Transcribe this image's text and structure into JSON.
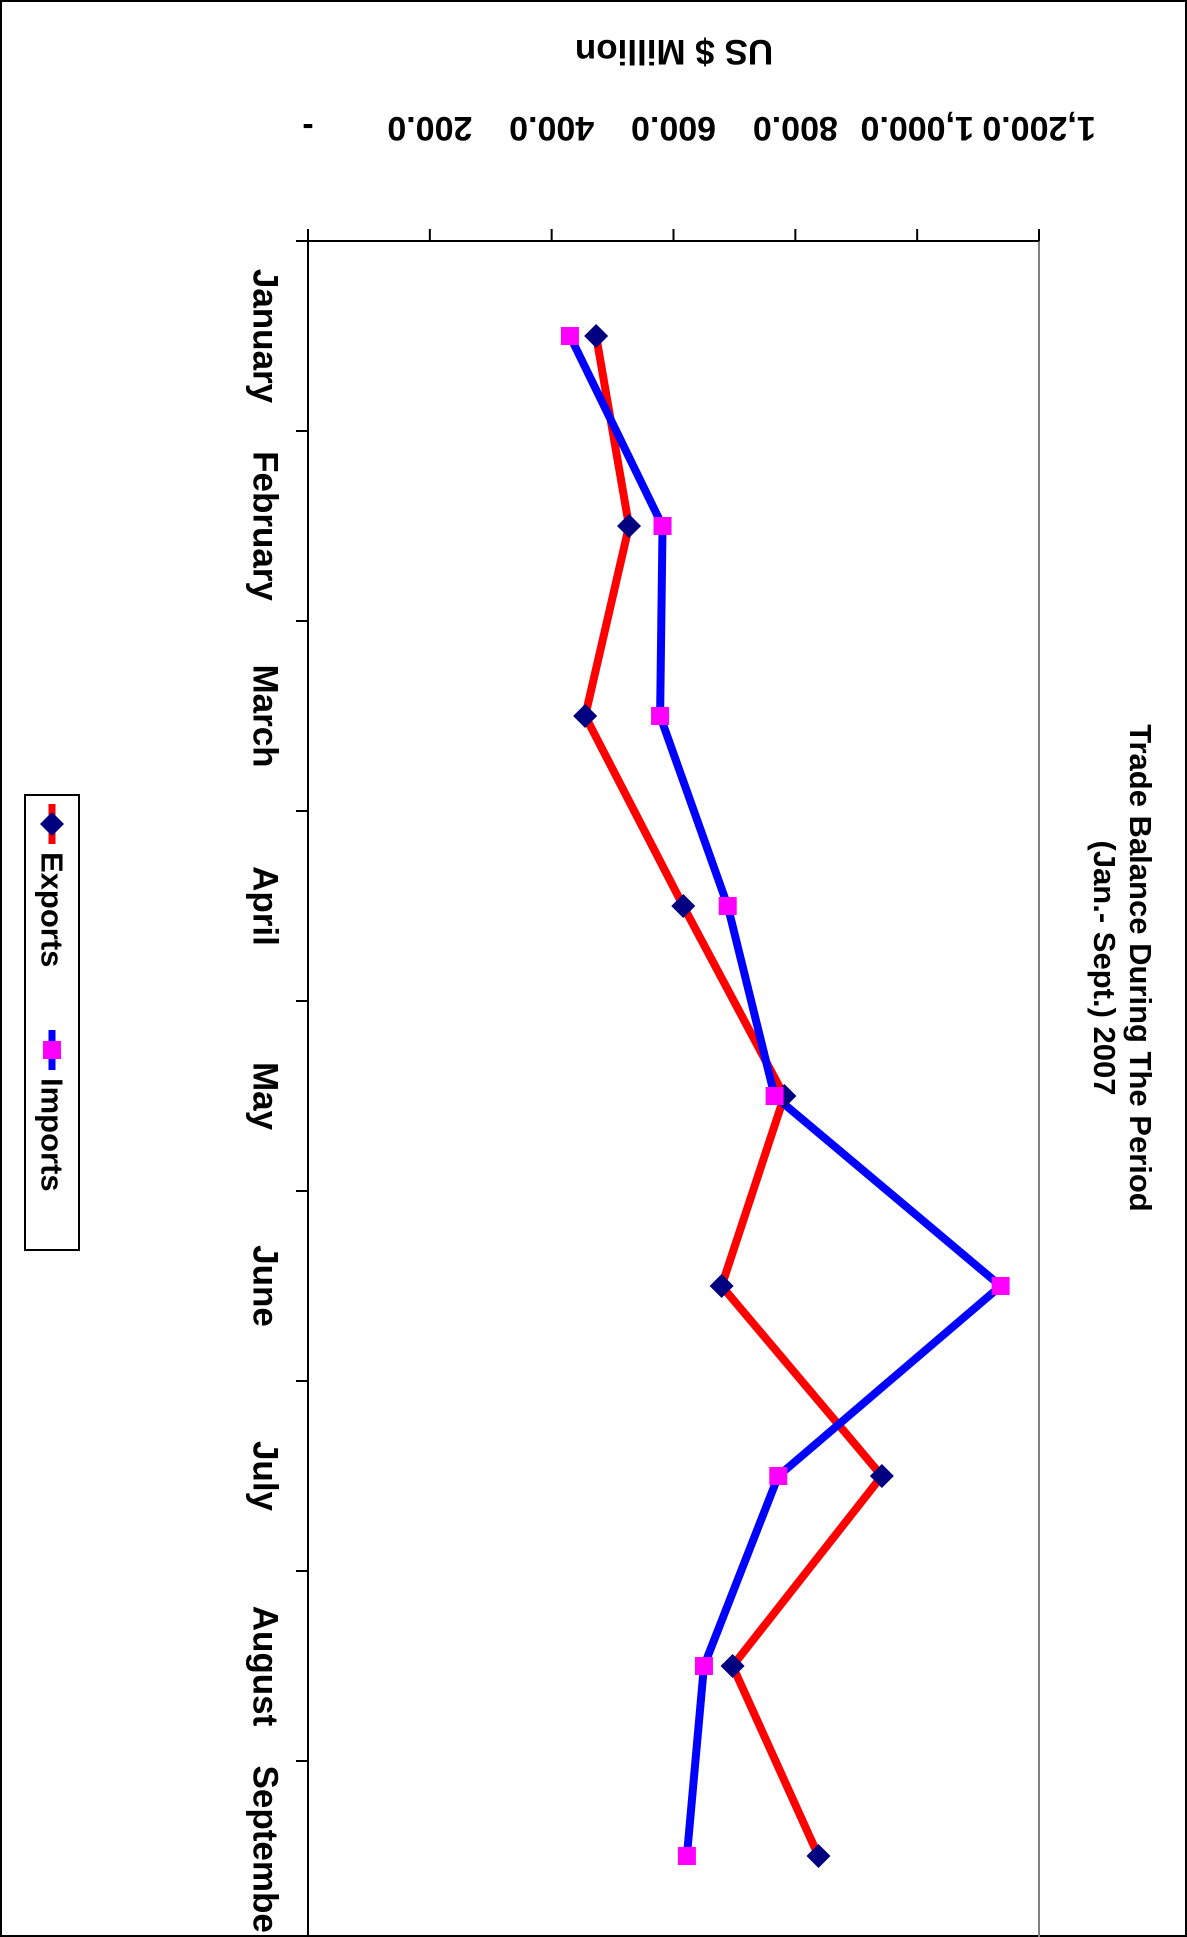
{
  "chart_data": {
    "type": "line",
    "orientation": "rotated-90-clockwise",
    "title": "Trade Balance During The Period",
    "subtitle": "(Jan.- Sept.) 2007",
    "ylabel": "US $ Million",
    "xlabel": "",
    "categories": [
      "January",
      "February",
      "March",
      "April",
      "May",
      "June",
      "July",
      "August",
      "September"
    ],
    "ylim": [
      0,
      1200
    ],
    "yticks": [
      {
        "value": 0,
        "label": "-"
      },
      {
        "value": 200,
        "label": "200.0"
      },
      {
        "value": 400,
        "label": "400.0"
      },
      {
        "value": 600,
        "label": "600.0"
      },
      {
        "value": 800,
        "label": "800.0"
      },
      {
        "value": 1000,
        "label": "1,000.0"
      },
      {
        "value": 1200,
        "label": "1,200.0"
      }
    ],
    "grid": false,
    "legend_position": "bottom",
    "series": [
      {
        "name": "Exports",
        "values": [
          473,
          527,
          455,
          616,
          782,
          679,
          942,
          697,
          838
        ],
        "color": "#ff0000",
        "marker": "diamond",
        "marker_color": "#000080"
      },
      {
        "name": "Imports",
        "values": [
          430,
          582,
          578,
          689,
          766,
          1137,
          772,
          650,
          622
        ],
        "color": "#0000ff",
        "marker": "square",
        "marker_color": "#ff00ff"
      }
    ]
  }
}
